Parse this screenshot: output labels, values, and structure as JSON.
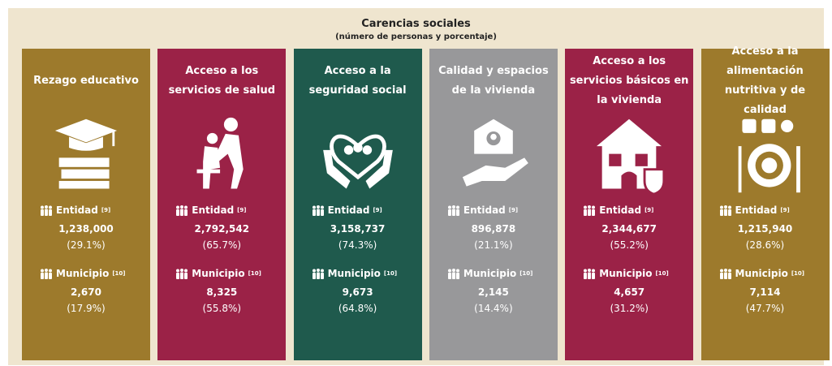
{
  "header": {
    "title": "Carencias sociales",
    "subtitle": "(número de personas y porcentaje)"
  },
  "cards": [
    {
      "title": "Rezago educativo",
      "color": "#9d7a2c",
      "entidad_label": "Entidad",
      "entidad_note": "[9]",
      "entidad_value": "1,238,000",
      "entidad_pct": "(29.1%)",
      "municipio_label": "Municipio",
      "municipio_note": "[10]",
      "municipio_value": "2,670",
      "municipio_pct": "(17.9%)"
    },
    {
      "title": "Acceso a los servicios de salud",
      "color": "#9b2247",
      "entidad_label": "Entidad",
      "entidad_note": "[9]",
      "entidad_value": "2,792,542",
      "entidad_pct": "(65.7%)",
      "municipio_label": "Municipio",
      "municipio_note": "[10]",
      "municipio_value": "8,325",
      "municipio_pct": "(55.8%)"
    },
    {
      "title": "Acceso a la seguridad social",
      "color": "#1f5a4d",
      "entidad_label": "Entidad",
      "entidad_note": "[9]",
      "entidad_value": "3,158,737",
      "entidad_pct": "(74.3%)",
      "municipio_label": "Municipio",
      "municipio_note": "[10]",
      "municipio_value": "9,673",
      "municipio_pct": "(64.8%)"
    },
    {
      "title": "Calidad y espacios de la vivienda",
      "color": "#98989a",
      "entidad_label": "Entidad",
      "entidad_note": "[9]",
      "entidad_value": "896,878",
      "entidad_pct": "(21.1%)",
      "municipio_label": "Municipio",
      "municipio_note": "[10]",
      "municipio_value": "2,145",
      "municipio_pct": "(14.4%)"
    },
    {
      "title": "Acceso a los servicios básicos en la vivienda",
      "color": "#9b2247",
      "entidad_label": "Entidad",
      "entidad_note": "[9]",
      "entidad_value": "2,344,677",
      "entidad_pct": "(55.2%)",
      "municipio_label": "Municipio",
      "municipio_note": "[10]",
      "municipio_value": "4,657",
      "municipio_pct": "(31.2%)"
    },
    {
      "title": "Acceso a la alimentación nutritiva y de calidad",
      "color": "#9d7a2c",
      "entidad_label": "Entidad",
      "entidad_note": "[9]",
      "entidad_value": "1,215,940",
      "entidad_pct": "(28.6%)",
      "municipio_label": "Municipio",
      "municipio_note": "[10]",
      "municipio_value": "7,114",
      "municipio_pct": "(47.7%)"
    }
  ]
}
